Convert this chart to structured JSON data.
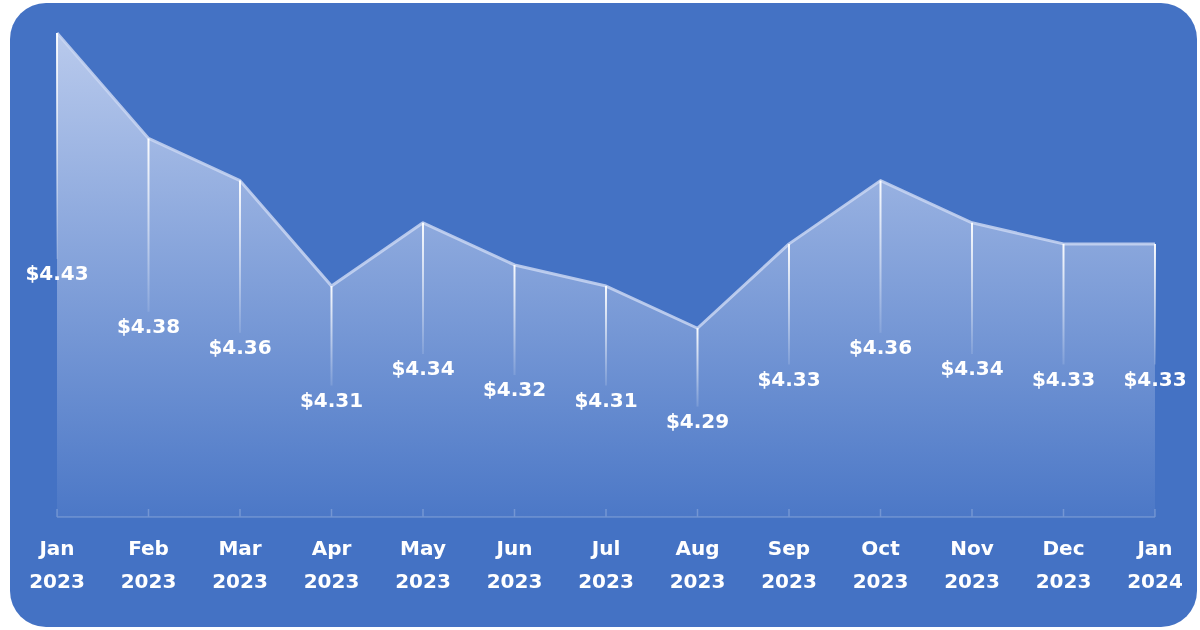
{
  "chart_data": {
    "type": "area",
    "categories": [
      "Jan 2023",
      "Feb 2023",
      "Mar 2023",
      "Apr 2023",
      "May 2023",
      "Jun 2023",
      "Jul 2023",
      "Aug 2023",
      "Sep 2023",
      "Oct 2023",
      "Nov 2023",
      "Dec 2023",
      "Jan 2024"
    ],
    "values": [
      4.43,
      4.38,
      4.36,
      4.31,
      4.34,
      4.32,
      4.31,
      4.29,
      4.33,
      4.36,
      4.34,
      4.33,
      4.33
    ],
    "value_labels": [
      "$4.43",
      "$4.38",
      "$4.36",
      "$4.31",
      "$4.34",
      "$4.32",
      "$4.31",
      "$4.29",
      "$4.33",
      "$4.36",
      "$4.34",
      "$4.33",
      "$4.33"
    ],
    "color": "#c9d6f2",
    "tick_labels": "x"
  }
}
